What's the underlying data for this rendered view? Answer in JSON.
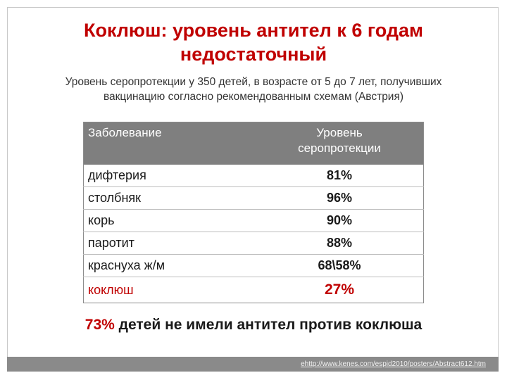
{
  "title": {
    "line1": "Коклюш: уровень антител к 6 годам",
    "line2": "недостаточный"
  },
  "subtitle": {
    "line1": "Уровень серопротекции  у 350 детей, в возрасте от 5 до 7 лет, получивших",
    "line2": "вакцинацию согласно  рекомендованным схемам  (Австрия)"
  },
  "table": {
    "headers": {
      "disease": "Заболевание",
      "level_line1": "Уровень",
      "level_line2": "серопротекции"
    },
    "rows": [
      {
        "disease": "дифтерия",
        "value": "81%"
      },
      {
        "disease": "столбняк",
        "value": "96%"
      },
      {
        "disease": "корь",
        "value": "90%"
      },
      {
        "disease": "паротит",
        "value": "88%"
      },
      {
        "disease": "краснуха ж/м",
        "value": "68\\58%"
      },
      {
        "disease": "коклюш",
        "value": "27%"
      }
    ]
  },
  "conclusion": {
    "highlight": "73%",
    "rest": " детей не имели антител против коклюша"
  },
  "footer": {
    "link": "ehttp://www.kenes.com/espid2010/posters/Abstract612.htm"
  },
  "colors": {
    "accent": "#c00000",
    "header_bg": "#7f7f7f",
    "footer_bg": "#8a8a8a"
  }
}
